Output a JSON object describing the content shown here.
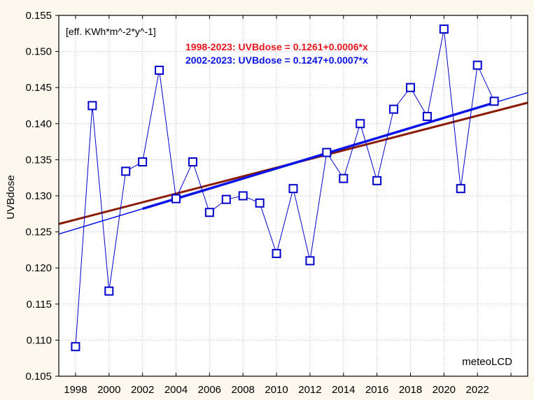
{
  "chart_data": {
    "type": "line",
    "title": "",
    "xlabel": "",
    "ylabel": "UVBdose",
    "unit_label": "[eff. KWh*m^-2*y^-1]",
    "watermark": "meteoLCD",
    "xlim": [
      1997,
      2025
    ],
    "ylim": [
      0.105,
      0.155
    ],
    "grid": true,
    "x_ticks": [
      1998,
      2000,
      2002,
      2004,
      2006,
      2008,
      2010,
      2012,
      2014,
      2016,
      2018,
      2020,
      2022
    ],
    "y_ticks": [
      "0.105",
      "0.110",
      "0.115",
      "0.120",
      "0.125",
      "0.130",
      "0.135",
      "0.140",
      "0.145",
      "0.150",
      "0.155"
    ],
    "x": [
      1998,
      1999,
      2000,
      2001,
      2002,
      2003,
      2004,
      2005,
      2006,
      2007,
      2008,
      2009,
      2010,
      2011,
      2012,
      2013,
      2014,
      2015,
      2016,
      2017,
      2018,
      2019,
      2020,
      2021,
      2022,
      2023
    ],
    "series": [
      {
        "name": "UVBdose",
        "color": "#0000cc",
        "values": [
          0.1091,
          0.1425,
          0.1168,
          0.1334,
          0.1347,
          0.1474,
          0.1296,
          0.1347,
          0.1277,
          0.1295,
          0.13,
          0.129,
          0.122,
          0.131,
          0.121,
          0.136,
          0.1324,
          0.14,
          0.1321,
          0.142,
          0.145,
          0.141,
          0.1531,
          0.131,
          0.1481,
          0.1431
        ]
      }
    ],
    "trendlines": [
      {
        "label": "1998-2023: UVBdose = 0.1261+0.0006*x",
        "color": "#8b1a00",
        "label_color": "#e8141e",
        "intercept": 0.1261,
        "slope": 0.0006,
        "x0": 1997,
        "fit_range": [
          1997,
          2025
        ]
      },
      {
        "label": "2002-2023: UVBdose = 0.1247+0.0007*x",
        "color": "#0a14e6",
        "label_color": "#0a14e6",
        "intercept": 0.1247,
        "slope": 0.0007,
        "x0": 1997,
        "fit_range": [
          2002,
          2023
        ]
      }
    ]
  }
}
